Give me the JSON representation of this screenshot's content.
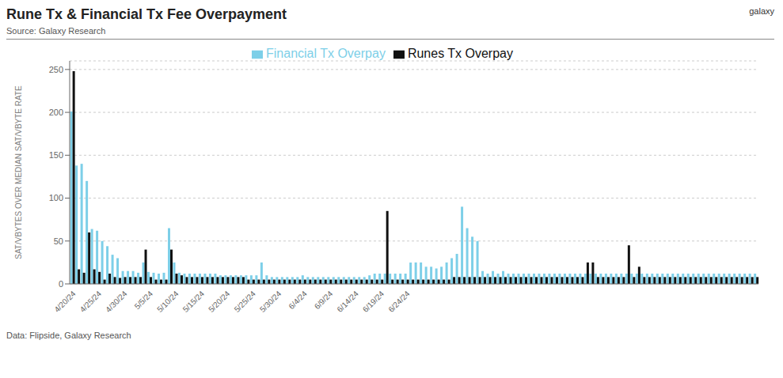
{
  "chart_data": {
    "type": "bar",
    "title": "Rune Tx & Financial Tx Fee Overpayment",
    "subtitle": "Source: Galaxy Research",
    "annotations": [
      "Data: Flipside, Galaxy Research",
      "galaxy"
    ],
    "y_label": "SAT/VBYTES OVER MEDIAN SAT/VBYTE RATE",
    "ylim": [
      0,
      260
    ],
    "yticks": [
      0,
      50,
      100,
      150,
      200,
      250
    ],
    "grid": true,
    "legend": "top",
    "categories": [
      "4/20/24",
      null,
      null,
      null,
      null,
      "4/25/24",
      null,
      null,
      null,
      null,
      "4/30/24",
      null,
      null,
      null,
      null,
      "5/5/24",
      null,
      null,
      null,
      null,
      "5/10/24",
      null,
      null,
      null,
      null,
      "5/15/24",
      null,
      null,
      null,
      null,
      "5/20/24",
      null,
      null,
      null,
      null,
      "5/25/24",
      null,
      null,
      null,
      null,
      "5/30/24",
      null,
      null,
      null,
      null,
      "6/4/24",
      null,
      null,
      null,
      null,
      "6/9/24",
      null,
      null,
      null,
      null,
      "6/14/24",
      null,
      null,
      null,
      null,
      "6/19/24",
      null,
      null,
      null,
      null,
      "6/24/24",
      null,
      null,
      null,
      null,
      null,
      null,
      null,
      null,
      null,
      null,
      null,
      null,
      null,
      null,
      null,
      null,
      null,
      null,
      null,
      null,
      null,
      null,
      null,
      null,
      null,
      null,
      null,
      null,
      null,
      null,
      null,
      null,
      null,
      null,
      null,
      null,
      null,
      null,
      null,
      null,
      null,
      null,
      null,
      null,
      null,
      null,
      null,
      null,
      null,
      null,
      null,
      null,
      null,
      null,
      null,
      null,
      null,
      null,
      null,
      null,
      null,
      null,
      null,
      null,
      null,
      null,
      null,
      null
    ],
    "series": [
      {
        "name": "Financial Tx Overpay",
        "color": "#7dcfe8",
        "values": [
          201,
          138,
          140,
          120,
          64,
          62,
          50,
          44,
          34,
          30,
          15,
          15,
          15,
          13,
          25,
          14,
          13,
          12,
          13,
          65,
          25,
          13,
          12,
          12,
          12,
          12,
          12,
          12,
          12,
          10,
          10,
          10,
          10,
          10,
          10,
          10,
          10,
          25,
          10,
          8,
          8,
          8,
          8,
          8,
          8,
          10,
          8,
          8,
          8,
          8,
          8,
          8,
          8,
          8,
          8,
          8,
          8,
          8,
          10,
          12,
          12,
          12,
          12,
          12,
          12,
          12,
          25,
          25,
          25,
          20,
          20,
          18,
          20,
          25,
          30,
          35,
          90,
          65,
          55,
          50,
          15,
          12,
          15,
          12,
          15,
          12,
          12,
          12,
          12,
          12,
          12,
          12,
          12,
          12,
          12,
          12,
          12,
          12,
          12,
          12,
          12,
          12,
          12,
          12,
          12,
          12,
          12,
          12,
          12,
          12,
          12,
          12,
          12,
          12,
          12,
          12,
          12,
          12,
          12,
          12,
          12,
          12,
          12,
          12,
          12,
          12,
          12,
          12,
          12,
          12,
          12,
          12,
          12,
          12
        ]
      },
      {
        "name": "Runes Tx Overpay",
        "color": "#111111",
        "values": [
          248,
          17,
          13,
          60,
          17,
          14,
          5,
          12,
          8,
          7,
          8,
          8,
          8,
          8,
          40,
          8,
          5,
          5,
          5,
          40,
          12,
          10,
          8,
          8,
          8,
          8,
          8,
          8,
          8,
          8,
          8,
          8,
          8,
          8,
          5,
          5,
          5,
          5,
          5,
          5,
          5,
          5,
          5,
          5,
          5,
          5,
          5,
          5,
          5,
          5,
          5,
          5,
          5,
          5,
          5,
          5,
          5,
          5,
          5,
          5,
          5,
          85,
          5,
          5,
          5,
          5,
          5,
          5,
          5,
          5,
          5,
          5,
          5,
          5,
          8,
          8,
          8,
          8,
          8,
          8,
          8,
          8,
          8,
          8,
          8,
          8,
          8,
          8,
          8,
          8,
          8,
          8,
          8,
          8,
          8,
          8,
          8,
          8,
          8,
          8,
          25,
          25,
          8,
          8,
          8,
          8,
          8,
          8,
          45,
          8,
          20,
          8,
          8,
          8,
          8,
          8,
          8,
          8,
          8,
          8,
          8,
          8,
          8,
          8,
          8,
          8,
          8,
          8,
          8,
          8,
          8,
          8,
          8,
          8
        ]
      }
    ]
  }
}
